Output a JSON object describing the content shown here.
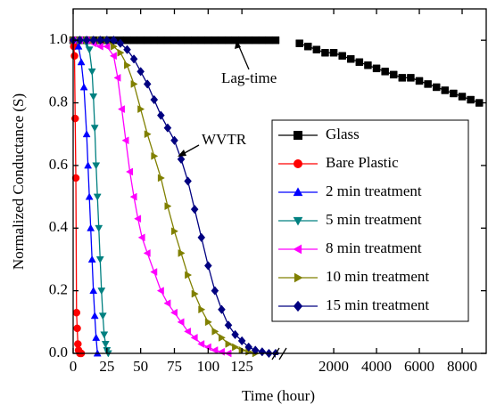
{
  "chart_data": {
    "type": "line",
    "x_label": "Time (hour)",
    "y_label": "Normalized Conductance (S)",
    "ylim": [
      0,
      1.1
    ],
    "yticks": [
      {
        "value": 0,
        "label": "0.0"
      },
      {
        "value": 0.2,
        "label": "0.2"
      },
      {
        "value": 0.4,
        "label": "0.4"
      },
      {
        "value": 0.6,
        "label": "0.6"
      },
      {
        "value": 0.8,
        "label": "0.8"
      },
      {
        "value": 1,
        "label": "1.0"
      }
    ],
    "x_segments": [
      {
        "xlim": [
          0,
          152
        ],
        "xticks": [
          0,
          25,
          50,
          75,
          100,
          125
        ]
      },
      {
        "xlim": [
          -420,
          9125
        ],
        "xticks": [
          2000,
          4000,
          6000,
          8000
        ]
      }
    ],
    "legend": "center right",
    "annotations": [
      "Lag-time",
      "WVTR"
    ],
    "series": [
      {
        "name": "Glass",
        "color": "#000000",
        "marker": "square",
        "x": [
          0,
          5,
          10,
          15,
          20,
          25,
          30,
          35,
          40,
          45,
          50,
          55,
          60,
          65,
          70,
          75,
          80,
          85,
          90,
          95,
          100,
          105,
          110,
          115,
          120,
          125,
          130,
          135,
          140,
          145,
          150,
          400,
          800,
          1200,
          1600,
          2000,
          2400,
          2800,
          3200,
          3600,
          4000,
          4400,
          4800,
          5200,
          5600,
          6000,
          6400,
          6800,
          7200,
          7600,
          8000,
          8400,
          8800
        ],
        "values": [
          1,
          1,
          1,
          1,
          1,
          1,
          1,
          1,
          1,
          1,
          1,
          1,
          1,
          1,
          1,
          1,
          1,
          1,
          1,
          1,
          1,
          1,
          1,
          1,
          1,
          1,
          1,
          1,
          1,
          1,
          1,
          0.99,
          0.98,
          0.97,
          0.96,
          0.96,
          0.95,
          0.94,
          0.93,
          0.92,
          0.91,
          0.9,
          0.89,
          0.88,
          0.88,
          0.87,
          0.86,
          0.85,
          0.84,
          0.83,
          0.82,
          0.81,
          0.8
        ]
      },
      {
        "name": "Bare Plastic",
        "color": "#ff0000",
        "marker": "circle",
        "x": [
          0,
          0.5,
          1,
          1.5,
          2,
          2.5,
          3,
          3.5,
          4,
          5,
          6
        ],
        "values": [
          1,
          0.98,
          0.95,
          0.75,
          0.56,
          0.13,
          0.08,
          0.03,
          0.01,
          0,
          0
        ]
      },
      {
        "name": "2 min treatment",
        "color": "#0000ff",
        "marker": "triangle-up",
        "x": [
          0,
          2,
          4,
          6,
          8,
          10,
          11,
          12,
          13,
          14,
          15,
          16,
          17,
          18
        ],
        "values": [
          1,
          1,
          0.98,
          0.93,
          0.85,
          0.7,
          0.6,
          0.5,
          0.4,
          0.3,
          0.2,
          0.12,
          0.05,
          0
        ]
      },
      {
        "name": "5 min treatment",
        "color": "#008080",
        "marker": "triangle-down",
        "x": [
          0,
          4,
          8,
          10,
          12,
          14,
          15,
          16,
          17,
          18,
          19,
          20,
          21,
          22,
          23,
          24,
          25,
          26
        ],
        "values": [
          1,
          1,
          1,
          0.99,
          0.97,
          0.9,
          0.82,
          0.72,
          0.6,
          0.5,
          0.4,
          0.3,
          0.2,
          0.12,
          0.06,
          0.03,
          0.01,
          0
        ]
      },
      {
        "name": "8 min treatment",
        "color": "#ff00ff",
        "marker": "triangle-left",
        "x": [
          0,
          5,
          10,
          15,
          20,
          25,
          30,
          33,
          36,
          39,
          42,
          45,
          48,
          51,
          55,
          60,
          65,
          70,
          75,
          80,
          85,
          90,
          95,
          100,
          105,
          110,
          115
        ],
        "values": [
          1,
          1,
          1,
          0.99,
          0.98,
          0.98,
          0.95,
          0.88,
          0.78,
          0.68,
          0.58,
          0.5,
          0.43,
          0.37,
          0.32,
          0.26,
          0.2,
          0.16,
          0.13,
          0.1,
          0.07,
          0.05,
          0.03,
          0.02,
          0.01,
          0.005,
          0
        ]
      },
      {
        "name": "10 min treatment",
        "color": "#808000",
        "marker": "triangle-right",
        "x": [
          0,
          5,
          10,
          15,
          20,
          25,
          30,
          35,
          40,
          45,
          50,
          55,
          60,
          65,
          70,
          75,
          80,
          85,
          90,
          95,
          100,
          105,
          110,
          115,
          120,
          125,
          130,
          135
        ],
        "values": [
          1,
          1,
          1,
          1,
          1,
          1,
          0.98,
          0.96,
          0.92,
          0.86,
          0.78,
          0.7,
          0.63,
          0.56,
          0.47,
          0.39,
          0.32,
          0.25,
          0.19,
          0.14,
          0.1,
          0.07,
          0.05,
          0.03,
          0.02,
          0.01,
          0.005,
          0
        ]
      },
      {
        "name": "15 min treatment",
        "color": "#000080",
        "marker": "diamond",
        "x": [
          0,
          5,
          10,
          15,
          20,
          25,
          30,
          35,
          40,
          45,
          50,
          55,
          60,
          65,
          70,
          75,
          80,
          85,
          90,
          95,
          100,
          105,
          110,
          115,
          120,
          125,
          130,
          135,
          140,
          145,
          150
        ],
        "values": [
          1,
          1,
          1,
          1,
          1,
          1,
          1,
          0.99,
          0.97,
          0.94,
          0.9,
          0.86,
          0.81,
          0.76,
          0.72,
          0.68,
          0.62,
          0.55,
          0.46,
          0.37,
          0.28,
          0.2,
          0.14,
          0.09,
          0.06,
          0.04,
          0.02,
          0.01,
          0.005,
          0,
          0
        ]
      }
    ]
  }
}
